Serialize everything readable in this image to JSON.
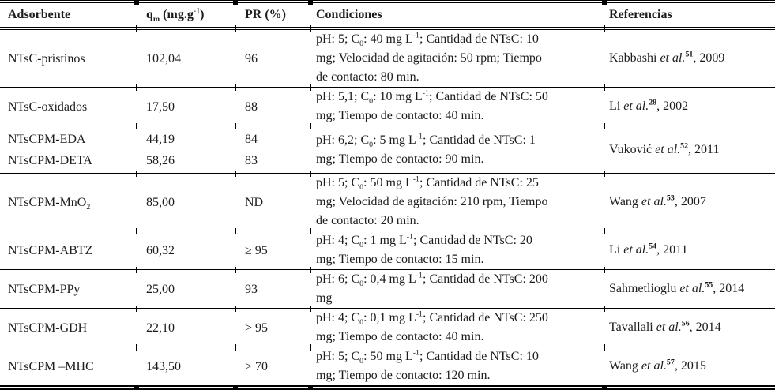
{
  "colors": {
    "background": "#ffffff",
    "text": "#1c1c1c",
    "rule": "#000000"
  },
  "table": {
    "columns": [
      {
        "key": "adsorbente",
        "label": "Adsorbente"
      },
      {
        "key": "qm",
        "label": "q~m~ (mg.g^-1^)"
      },
      {
        "key": "pr",
        "label": "PR (%)"
      },
      {
        "key": "condiciones",
        "label": "Condiciones"
      },
      {
        "key": "referencias",
        "label": "Referencias"
      }
    ],
    "rows": [
      {
        "adsorbente": "NTsC-prístinos",
        "qm": "102,04",
        "pr": "96",
        "condiciones": "pH: 5; C~0~: 40 mg L^-1^; Cantidad de NTsC: 10\nmg; Velocidad de agitación: 50 rpm; Tiempo\nde contacto: 80 min.",
        "referencias": "Kabbashi *et al.*^51^, 2009"
      },
      {
        "adsorbente": "NTsC-oxidados",
        "qm": "17,50",
        "pr": "88",
        "condiciones": "pH: 5,1; C~0~: 10 mg L^-1^; Cantidad de NTsC: 50\nmg; Tiempo de contacto: 40 min.",
        "referencias": "Li *et al.*^28^, 2002"
      },
      {
        "adsorbente": "NTsCPM-EDA\nNTsCPM-DETA",
        "qm": "44,19\n58,26",
        "pr": "84\n83",
        "condiciones": "pH: 6,2; C~0~: 5 mg L^-1^; Cantidad de NTsC: 1\nmg; Tiempo de contacto: 90 min.",
        "referencias": "Vuković *et al.*^52^, 2011"
      },
      {
        "adsorbente": "NTsCPM-MnO~2~",
        "qm": "85,00",
        "pr": "ND",
        "condiciones": "pH: 5; C~0~: 50 mg L^-1^; Cantidad de NTsC: 25\nmg; Velocidad de agitación: 210 rpm, Tiempo\nde contacto: 20 min.",
        "referencias": "Wang *et al.*^53^, 2007"
      },
      {
        "adsorbente": "NTsCPM-ABTZ",
        "qm": "60,32",
        "pr": "≥ 95",
        "condiciones": "pH: 4; C~0~: 1 mg L^-1^; Cantidad de NTsC: 20\nmg; Tiempo de contacto: 15 min.",
        "referencias": "Li *et al.*^54^, 2011"
      },
      {
        "adsorbente": "NTsCPM-PPy",
        "qm": "25,00",
        "pr": "93",
        "condiciones": "pH: 6; C~0~: 0,4 mg L^-1^; Cantidad de NTsC: 200\nmg",
        "referencias": "Sahmetlioglu *et al.*^55^, 2014"
      },
      {
        "adsorbente": "NTsCPM-GDH",
        "qm": "22,10",
        "pr": "> 95",
        "condiciones": "pH: 4; C~0~: 0,1 mg L^-1^; Cantidad de NTsC: 250\nmg; Tiempo de contacto: 40 min.",
        "referencias": "Tavallali *et al.*^56^, 2014"
      },
      {
        "adsorbente": "NTsCPM –MHC",
        "qm": "143,50",
        "pr": "> 70",
        "condiciones": "pH: 5; C~0~: 50 mg L^-1^; Cantidad de NTsC: 10\nmg; Tiempo de contacto: 120 min.",
        "referencias": "Wang *et al.*^57^, 2015"
      }
    ]
  }
}
